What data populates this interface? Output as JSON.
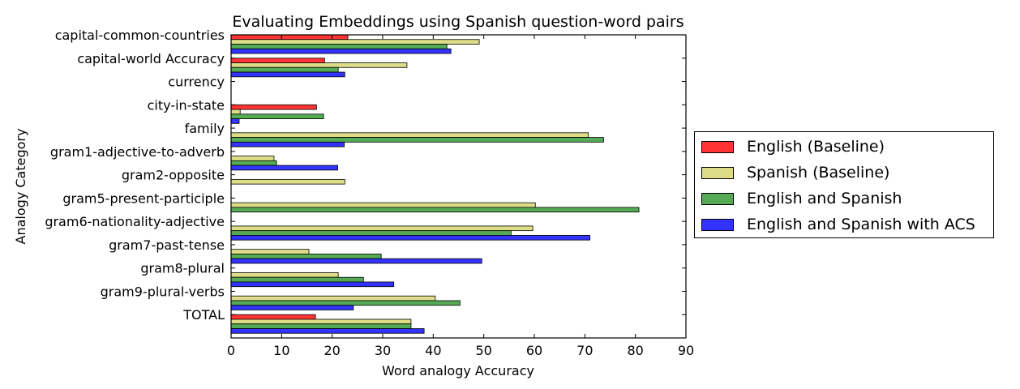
{
  "chart_data": {
    "type": "bar",
    "orientation": "horizontal",
    "title": "Evaluating Embeddings using Spanish question-word pairs",
    "xlabel": "Word analogy Accuracy",
    "ylabel": "Analogy Category",
    "xlim": [
      0,
      90
    ],
    "xticks": [
      "0",
      "10",
      "20",
      "30",
      "40",
      "50",
      "60",
      "70",
      "80",
      "90"
    ],
    "categories": [
      "capital-common-countries",
      "capital-world Accuracy",
      "currency",
      "city-in-state",
      "family",
      "gram1-adjective-to-adverb",
      "gram2-opposite",
      "gram5-present-participle",
      "gram6-nationality-adjective",
      "gram7-past-tense",
      "gram8-plural",
      "gram9-plural-verbs",
      "TOTAL"
    ],
    "series": [
      {
        "name": "English (Baseline)",
        "color": "#ff3333",
        "values": [
          23.1,
          18.5,
          0,
          16.9,
          0,
          0,
          0,
          0,
          0,
          0,
          0,
          0,
          16.7
        ]
      },
      {
        "name": "Spanish (Baseline)",
        "color": "#dddd88",
        "values": [
          49.1,
          34.8,
          0,
          1.8,
          70.7,
          8.5,
          22.5,
          60.2,
          59.7,
          15.4,
          21.2,
          40.4,
          35.6
        ]
      },
      {
        "name": "English and Spanish",
        "color": "#55aa55",
        "values": [
          42.7,
          21.2,
          0,
          18.3,
          73.7,
          9.0,
          0,
          80.7,
          55.4,
          29.7,
          26.2,
          45.3,
          35.6
        ]
      },
      {
        "name": "English and Spanish with ACS",
        "color": "#3333ff",
        "values": [
          43.5,
          22.5,
          0,
          1.6,
          22.4,
          21.1,
          0,
          0,
          71.0,
          49.6,
          32.2,
          24.2,
          38.2
        ]
      }
    ],
    "grid": false,
    "legend_position": "right, outside plot"
  }
}
